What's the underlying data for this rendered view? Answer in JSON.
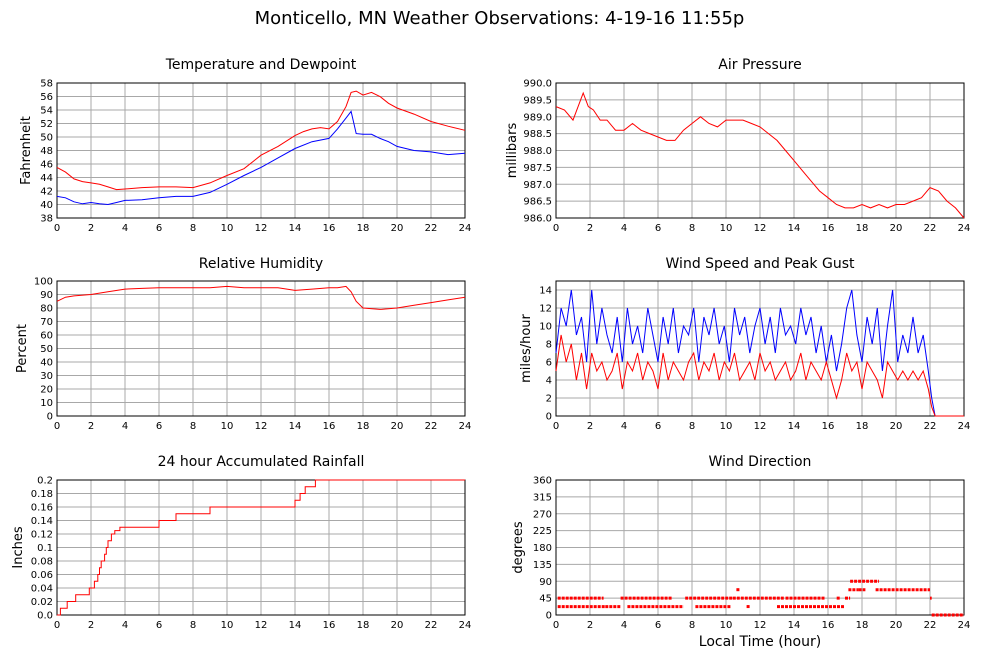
{
  "title": "Monticello, MN Weather Observations: 4-19-16 11:55p",
  "x_caption": "Local Time (hour)",
  "colors": {
    "red": "#ff0000",
    "blue": "#0000ff",
    "grid": "#a8a8a8",
    "axis": "#000000"
  },
  "chart_data": [
    {
      "id": "temp",
      "type": "line",
      "title": "Temperature and Dewpoint",
      "xlabel": "",
      "ylabel": "Fahrenheit",
      "xlim": [
        0,
        24
      ],
      "ylim": [
        38,
        58
      ],
      "xticks": [
        0,
        2,
        4,
        6,
        8,
        10,
        12,
        14,
        16,
        18,
        20,
        22,
        24
      ],
      "yticks": [
        38,
        40,
        42,
        44,
        46,
        48,
        50,
        52,
        54,
        56,
        58
      ],
      "grid": true,
      "series": [
        {
          "color": "#ff0000",
          "x": [
            0,
            0.5,
            1,
            1.5,
            2,
            2.5,
            3,
            3.5,
            4,
            5,
            6,
            7,
            8,
            9,
            10,
            11,
            12,
            13,
            14,
            14.5,
            15,
            15.5,
            16,
            16.5,
            17,
            17.3,
            17.6,
            18,
            18.5,
            19,
            19.5,
            20,
            21,
            22,
            23,
            24
          ],
          "y": [
            45.5,
            44.8,
            43.8,
            43.4,
            43.2,
            43,
            42.6,
            42.2,
            42.3,
            42.5,
            42.6,
            42.6,
            42.5,
            43.2,
            44.3,
            45.3,
            47.3,
            48.6,
            50.2,
            50.8,
            51.2,
            51.4,
            51.2,
            52.3,
            54.5,
            56.6,
            56.8,
            56.2,
            56.6,
            56,
            55,
            54.3,
            53.4,
            52.3,
            51.6,
            51
          ]
        },
        {
          "color": "#0000ff",
          "x": [
            0,
            0.5,
            1,
            1.5,
            2,
            2.5,
            3,
            3.5,
            4,
            5,
            6,
            7,
            8,
            9,
            10,
            11,
            12,
            13,
            14,
            15,
            16,
            16.5,
            17,
            17.3,
            17.6,
            18,
            18.5,
            19,
            19.5,
            20,
            21,
            22,
            23,
            24
          ],
          "y": [
            41.2,
            41,
            40.4,
            40.1,
            40.3,
            40.1,
            40,
            40.3,
            40.6,
            40.7,
            41,
            41.2,
            41.2,
            41.8,
            43,
            44.3,
            45.5,
            46.9,
            48.3,
            49.3,
            49.8,
            51.2,
            52.8,
            53.8,
            50.5,
            50.4,
            50.4,
            49.8,
            49.3,
            48.6,
            48,
            47.8,
            47.4,
            47.6
          ]
        }
      ]
    },
    {
      "id": "pressure",
      "type": "line",
      "title": "Air Pressure",
      "xlabel": "",
      "ylabel": "millibars",
      "xlim": [
        0,
        24
      ],
      "ylim": [
        986.0,
        990.0
      ],
      "xticks": [
        0,
        2,
        4,
        6,
        8,
        10,
        12,
        14,
        16,
        18,
        20,
        22,
        24
      ],
      "yticks": [
        "986.0",
        "986.5",
        "987.0",
        "987.5",
        "988.0",
        "988.5",
        "989.0",
        "989.5",
        "990.0"
      ],
      "grid": true,
      "series": [
        {
          "color": "#ff0000",
          "x": [
            0,
            0.5,
            1,
            1.3,
            1.6,
            1.9,
            2.2,
            2.6,
            3,
            3.5,
            4,
            4.5,
            5,
            5.5,
            6,
            6.5,
            7,
            7.5,
            8,
            8.5,
            9,
            9.5,
            10,
            10.5,
            11,
            11.5,
            12,
            12.5,
            13,
            13.5,
            14,
            14.5,
            15,
            15.5,
            16,
            16.5,
            17,
            17.5,
            18,
            18.5,
            19,
            19.5,
            20,
            20.5,
            21,
            21.5,
            22,
            22.5,
            23,
            23.5,
            24
          ],
          "y": [
            989.3,
            989.2,
            988.9,
            989.3,
            989.7,
            989.3,
            989.2,
            988.9,
            988.9,
            988.6,
            988.6,
            988.8,
            988.6,
            988.5,
            988.4,
            988.3,
            988.3,
            988.6,
            988.8,
            989.0,
            988.8,
            988.7,
            988.9,
            988.9,
            988.9,
            988.8,
            988.7,
            988.5,
            988.3,
            988.0,
            987.7,
            987.4,
            987.1,
            986.8,
            986.6,
            986.4,
            986.3,
            986.3,
            986.4,
            986.3,
            986.4,
            986.3,
            986.4,
            986.4,
            986.5,
            986.6,
            986.9,
            986.8,
            986.5,
            986.3,
            986.0
          ]
        }
      ]
    },
    {
      "id": "humidity",
      "type": "line",
      "title": "Relative Humidity",
      "xlabel": "",
      "ylabel": "Percent",
      "xlim": [
        0,
        24
      ],
      "ylim": [
        0,
        100
      ],
      "xticks": [
        0,
        2,
        4,
        6,
        8,
        10,
        12,
        14,
        16,
        18,
        20,
        22,
        24
      ],
      "yticks": [
        0,
        10,
        20,
        30,
        40,
        50,
        60,
        70,
        80,
        90,
        100
      ],
      "grid": true,
      "series": [
        {
          "color": "#ff0000",
          "x": [
            0,
            0.5,
            1,
            2,
            3,
            4,
            5,
            6,
            7,
            8,
            9,
            10,
            11,
            12,
            13,
            14,
            15,
            16,
            16.5,
            17,
            17.3,
            17.6,
            18,
            19,
            20,
            21,
            22,
            23,
            24
          ],
          "y": [
            85,
            88,
            89,
            90,
            92,
            94,
            94.5,
            95,
            95,
            95,
            95,
            96,
            95,
            95,
            95,
            93,
            94,
            95,
            95,
            96,
            92,
            85,
            80,
            79,
            80,
            82,
            84,
            86,
            88
          ]
        }
      ]
    },
    {
      "id": "wind",
      "type": "line",
      "title": "Wind Speed and Peak Gust",
      "xlabel": "",
      "ylabel": "miles/hour",
      "xlim": [
        0,
        24
      ],
      "ylim": [
        0,
        15
      ],
      "xticks": [
        0,
        2,
        4,
        6,
        8,
        10,
        12,
        14,
        16,
        18,
        20,
        22,
        24
      ],
      "yticks": [
        0,
        2,
        4,
        6,
        8,
        10,
        12,
        14
      ],
      "grid": true,
      "series": [
        {
          "color": "#0000ff",
          "x": [
            0,
            0.3,
            0.6,
            0.9,
            1.2,
            1.5,
            1.8,
            2.1,
            2.4,
            2.7,
            3,
            3.3,
            3.6,
            3.9,
            4.2,
            4.5,
            4.8,
            5.1,
            5.4,
            5.7,
            6,
            6.3,
            6.6,
            6.9,
            7.2,
            7.5,
            7.8,
            8.1,
            8.4,
            8.7,
            9,
            9.3,
            9.6,
            9.9,
            10.2,
            10.5,
            10.8,
            11.1,
            11.4,
            11.7,
            12,
            12.3,
            12.6,
            12.9,
            13.2,
            13.5,
            13.8,
            14.1,
            14.4,
            14.7,
            15,
            15.3,
            15.6,
            15.9,
            16.2,
            16.5,
            16.8,
            17.1,
            17.4,
            17.7,
            18,
            18.3,
            18.6,
            18.9,
            19.2,
            19.5,
            19.8,
            20.1,
            20.4,
            20.7,
            21,
            21.3,
            21.6,
            21.9,
            22.1,
            22.3,
            23,
            24
          ],
          "y": [
            7,
            12,
            10,
            14,
            9,
            11,
            6,
            14,
            8,
            12,
            9,
            7,
            11,
            6,
            12,
            8,
            10,
            7,
            12,
            9,
            6,
            11,
            8,
            12,
            7,
            10,
            9,
            12,
            6,
            11,
            9,
            12,
            8,
            10,
            6,
            12,
            9,
            11,
            7,
            10,
            12,
            8,
            11,
            7,
            12,
            9,
            10,
            8,
            12,
            9,
            11,
            7,
            10,
            6,
            9,
            5,
            8,
            12,
            14,
            9,
            6,
            11,
            8,
            12,
            5,
            10,
            14,
            6,
            9,
            7,
            11,
            7,
            9,
            5,
            2,
            0,
            0,
            0
          ]
        },
        {
          "color": "#ff0000",
          "x": [
            0,
            0.3,
            0.6,
            0.9,
            1.2,
            1.5,
            1.8,
            2.1,
            2.4,
            2.7,
            3,
            3.3,
            3.6,
            3.9,
            4.2,
            4.5,
            4.8,
            5.1,
            5.4,
            5.7,
            6,
            6.3,
            6.6,
            6.9,
            7.2,
            7.5,
            7.8,
            8.1,
            8.4,
            8.7,
            9,
            9.3,
            9.6,
            9.9,
            10.2,
            10.5,
            10.8,
            11.1,
            11.4,
            11.7,
            12,
            12.3,
            12.6,
            12.9,
            13.2,
            13.5,
            13.8,
            14.1,
            14.4,
            14.7,
            15,
            15.3,
            15.6,
            15.9,
            16.2,
            16.5,
            16.8,
            17.1,
            17.4,
            17.7,
            18,
            18.3,
            18.6,
            18.9,
            19.2,
            19.5,
            19.8,
            20.1,
            20.4,
            20.7,
            21,
            21.3,
            21.6,
            21.9,
            22.1,
            22.3,
            23,
            24
          ],
          "y": [
            5,
            9,
            6,
            8,
            4,
            7,
            3,
            7,
            5,
            6,
            4,
            5,
            7,
            3,
            6,
            5,
            7,
            4,
            6,
            5,
            3,
            7,
            4,
            6,
            5,
            4,
            6,
            7,
            4,
            6,
            5,
            7,
            4,
            6,
            5,
            7,
            4,
            5,
            6,
            4,
            7,
            5,
            6,
            4,
            5,
            6,
            4,
            5,
            7,
            4,
            6,
            5,
            4,
            6,
            4,
            2,
            4,
            7,
            5,
            6,
            3,
            6,
            5,
            4,
            2,
            6,
            5,
            4,
            5,
            4,
            5,
            4,
            5,
            3,
            1,
            0,
            0,
            0
          ]
        }
      ]
    },
    {
      "id": "rain",
      "type": "line",
      "title": "24 hour Accumulated Rainfall",
      "xlabel": "",
      "ylabel": "Inches",
      "xlim": [
        0,
        24
      ],
      "ylim": [
        0,
        0.2
      ],
      "xticks": [
        0,
        2,
        4,
        6,
        8,
        10,
        12,
        14,
        16,
        18,
        20,
        22,
        24
      ],
      "yticks": [
        "0.0",
        "0.02",
        "0.04",
        "0.06",
        "0.08",
        "0.1",
        "0.12",
        "0.14",
        "0.16",
        "0.18",
        "0.2"
      ],
      "grid": true,
      "series": [
        {
          "color": "#ff0000",
          "step": true,
          "x": [
            0,
            0.2,
            0.6,
            1.1,
            1.9,
            2.2,
            2.4,
            2.5,
            2.6,
            2.8,
            2.9,
            3.0,
            3.2,
            3.4,
            3.7,
            4.0,
            6.0,
            6.4,
            7.0,
            9.0,
            14.0,
            14.3,
            14.6,
            15.2,
            24
          ],
          "y": [
            0,
            0.01,
            0.02,
            0.03,
            0.04,
            0.05,
            0.06,
            0.07,
            0.08,
            0.09,
            0.1,
            0.11,
            0.12,
            0.125,
            0.13,
            0.13,
            0.14,
            0.14,
            0.15,
            0.16,
            0.17,
            0.18,
            0.19,
            0.2,
            0.2
          ]
        }
      ]
    },
    {
      "id": "direction",
      "type": "scatter",
      "title": "Wind Direction",
      "xlabel": "Local Time (hour)",
      "ylabel": "degrees",
      "xlim": [
        0,
        24
      ],
      "ylim": [
        0,
        360
      ],
      "xticks": [
        0,
        2,
        4,
        6,
        8,
        10,
        12,
        14,
        16,
        18,
        20,
        22,
        24
      ],
      "yticks": [
        0,
        45,
        90,
        135,
        180,
        225,
        270,
        315,
        360
      ],
      "grid": true,
      "series": [
        {
          "color": "#ff0000",
          "segments": [
            {
              "x": [
                0.1,
                2.8
              ],
              "y": 45
            },
            {
              "x": [
                0.1,
                2.9
              ],
              "y": 22.5
            },
            {
              "x": [
                2.9,
                3.8
              ],
              "y": 22.5
            },
            {
              "x": [
                3.8,
                6.8
              ],
              "y": 45
            },
            {
              "x": [
                4.2,
                7.5
              ],
              "y": 22.5
            },
            {
              "x": [
                7.6,
                10.4
              ],
              "y": 45
            },
            {
              "x": [
                8.2,
                10.3
              ],
              "y": 22.5
            },
            {
              "x": [
                10.4,
                13.4
              ],
              "y": 45
            },
            {
              "x": [
                13.5,
                15.8
              ],
              "y": 45
            },
            {
              "x": [
                13.0,
                17.0
              ],
              "y": 22.5
            },
            {
              "x": [
                17.0,
                17.3
              ],
              "y": 45
            },
            {
              "x": [
                17.2,
                17.8
              ],
              "y": 67.5
            },
            {
              "x": [
                17.3,
                19.0
              ],
              "y": 90
            },
            {
              "x": [
                17.8,
                18.2
              ],
              "y": 67.5
            },
            {
              "x": [
                18.8,
                22.0
              ],
              "y": 67.5
            },
            {
              "x": [
                22.0,
                22.1
              ],
              "y": 45
            },
            {
              "x": [
                22.1,
                24.0
              ],
              "y": 0
            }
          ],
          "points": [
            {
              "x": 10.7,
              "y": 67.5
            },
            {
              "x": 11.3,
              "y": 22.5
            },
            {
              "x": 16.6,
              "y": 45
            }
          ]
        }
      ]
    }
  ]
}
